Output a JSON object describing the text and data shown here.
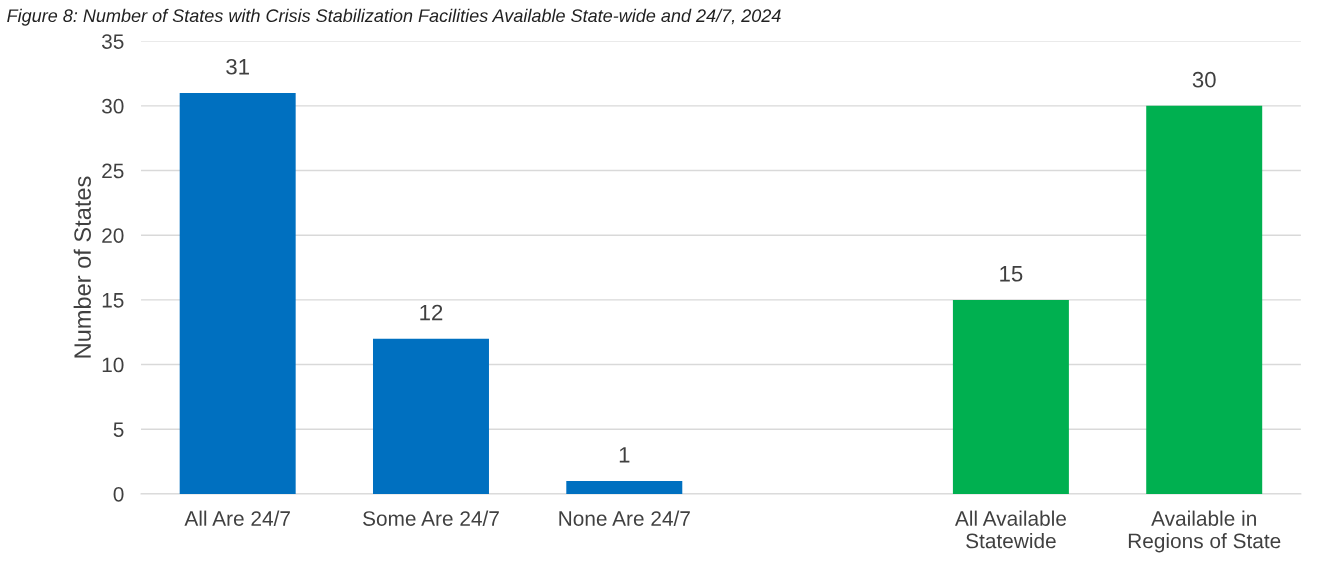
{
  "chart_data": {
    "type": "bar",
    "title": "Figure 8: Number of States with Crisis Stabilization Facilities Available State-wide and 24/7, 2024",
    "categories": [
      "All Are 24/7",
      "Some Are 24/7",
      "None Are 24/7",
      null,
      "All Available\nStatewide",
      "Available in\nRegions of State"
    ],
    "values": [
      31,
      12,
      1,
      null,
      15,
      30
    ],
    "colors": [
      "#0070c0",
      "#0070c0",
      "#0070c0",
      null,
      "#00b050",
      "#00b050"
    ],
    "ylabel": "Number of States",
    "ylim": [
      0,
      35
    ],
    "yticks": [
      0,
      5,
      10,
      15,
      20,
      25,
      30,
      35
    ],
    "grid": "y",
    "data_labels": true
  }
}
